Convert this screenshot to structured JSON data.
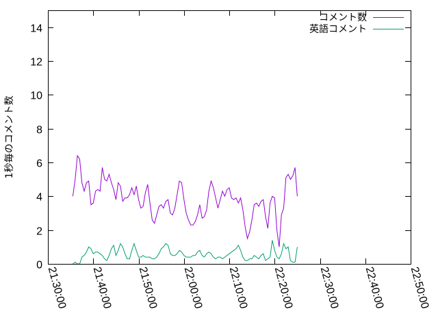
{
  "chart_data": {
    "type": "line",
    "title": "",
    "xlabel": "",
    "ylabel": "1秒毎のコメント数",
    "x_ticks": [
      "21:30:00",
      "21:40:00",
      "21:50:00",
      "22:00:00",
      "22:10:00",
      "22:20:00",
      "22:30:00",
      "22:40:00",
      "22:50:00"
    ],
    "xlim": [
      "21:30:00",
      "22:50:00"
    ],
    "y_ticks": [
      "0",
      "2",
      "4",
      "6",
      "8",
      "10",
      "12",
      "14"
    ],
    "ylim": [
      0,
      15
    ],
    "grid": false,
    "legend_position": "top-right",
    "series": [
      {
        "name": "コメント数",
        "color": "#9400d3",
        "points": [
          [
            "21:35:30",
            4.0
          ],
          [
            "21:36:00",
            5.0
          ],
          [
            "21:36:30",
            6.4
          ],
          [
            "21:37:00",
            6.2
          ],
          [
            "21:37:30",
            4.8
          ],
          [
            "21:38:00",
            4.3
          ],
          [
            "21:38:30",
            4.8
          ],
          [
            "21:39:00",
            4.9
          ],
          [
            "21:39:30",
            3.5
          ],
          [
            "21:40:00",
            3.6
          ],
          [
            "21:40:30",
            4.3
          ],
          [
            "21:41:00",
            4.4
          ],
          [
            "21:41:30",
            4.3
          ],
          [
            "21:42:00",
            5.7
          ],
          [
            "21:42:30",
            5.0
          ],
          [
            "21:43:00",
            4.9
          ],
          [
            "21:43:30",
            5.3
          ],
          [
            "21:44:00",
            4.8
          ],
          [
            "21:44:30",
            4.4
          ],
          [
            "21:45:00",
            3.8
          ],
          [
            "21:45:30",
            4.8
          ],
          [
            "21:46:00",
            4.6
          ],
          [
            "21:46:30",
            3.7
          ],
          [
            "21:47:00",
            3.9
          ],
          [
            "21:47:30",
            3.9
          ],
          [
            "21:48:00",
            4.1
          ],
          [
            "21:48:30",
            4.5
          ],
          [
            "21:49:00",
            4.1
          ],
          [
            "21:49:30",
            4.6
          ],
          [
            "21:50:00",
            3.8
          ],
          [
            "21:50:30",
            3.3
          ],
          [
            "21:51:00",
            3.4
          ],
          [
            "21:51:30",
            4.2
          ],
          [
            "21:52:00",
            4.7
          ],
          [
            "21:52:30",
            3.6
          ],
          [
            "21:53:00",
            2.6
          ],
          [
            "21:53:30",
            2.4
          ],
          [
            "21:54:00",
            2.9
          ],
          [
            "21:54:30",
            3.4
          ],
          [
            "21:55:00",
            3.5
          ],
          [
            "21:55:30",
            3.3
          ],
          [
            "21:56:00",
            3.7
          ],
          [
            "21:56:30",
            3.8
          ],
          [
            "21:57:00",
            3.0
          ],
          [
            "21:57:30",
            2.9
          ],
          [
            "21:58:00",
            3.3
          ],
          [
            "21:58:30",
            4.1
          ],
          [
            "21:59:00",
            4.9
          ],
          [
            "21:59:30",
            4.8
          ],
          [
            "22:00:00",
            3.8
          ],
          [
            "22:00:30",
            3.0
          ],
          [
            "22:01:00",
            2.6
          ],
          [
            "22:01:30",
            2.3
          ],
          [
            "22:02:00",
            2.3
          ],
          [
            "22:02:30",
            2.5
          ],
          [
            "22:03:00",
            2.9
          ],
          [
            "22:03:30",
            3.5
          ],
          [
            "22:04:00",
            2.7
          ],
          [
            "22:04:30",
            2.8
          ],
          [
            "22:05:00",
            3.2
          ],
          [
            "22:05:30",
            4.3
          ],
          [
            "22:06:00",
            4.9
          ],
          [
            "22:06:30",
            4.5
          ],
          [
            "22:07:00",
            3.9
          ],
          [
            "22:07:30",
            3.3
          ],
          [
            "22:08:00",
            3.8
          ],
          [
            "22:08:30",
            4.3
          ],
          [
            "22:09:00",
            4.0
          ],
          [
            "22:09:30",
            4.4
          ],
          [
            "22:10:00",
            4.5
          ],
          [
            "22:10:30",
            3.9
          ],
          [
            "22:11:00",
            3.8
          ],
          [
            "22:11:30",
            3.9
          ],
          [
            "22:12:00",
            3.6
          ],
          [
            "22:12:30",
            3.9
          ],
          [
            "22:13:00",
            3.2
          ],
          [
            "22:13:30",
            2.2
          ],
          [
            "22:14:00",
            1.5
          ],
          [
            "22:14:30",
            1.9
          ],
          [
            "22:15:00",
            2.6
          ],
          [
            "22:15:30",
            3.5
          ],
          [
            "22:16:00",
            3.6
          ],
          [
            "22:16:30",
            3.4
          ],
          [
            "22:17:00",
            3.7
          ],
          [
            "22:17:30",
            3.8
          ],
          [
            "22:18:00",
            2.8
          ],
          [
            "22:18:30",
            2.1
          ],
          [
            "22:19:00",
            3.6
          ],
          [
            "22:19:30",
            4.0
          ],
          [
            "22:20:00",
            3.9
          ],
          [
            "22:20:30",
            2.0
          ],
          [
            "22:21:00",
            1.0
          ],
          [
            "22:21:30",
            2.9
          ],
          [
            "22:22:00",
            3.3
          ],
          [
            "22:22:30",
            5.1
          ],
          [
            "22:23:00",
            5.3
          ],
          [
            "22:23:30",
            5.0
          ],
          [
            "22:24:00",
            5.2
          ],
          [
            "22:24:30",
            5.7
          ],
          [
            "22:25:00",
            4.0
          ]
        ]
      },
      {
        "name": "英語コメント",
        "color": "#009e73",
        "points": [
          [
            "21:35:30",
            0.0
          ],
          [
            "21:36:00",
            0.1
          ],
          [
            "21:36:30",
            0.0
          ],
          [
            "21:37:00",
            0.0
          ],
          [
            "21:37:30",
            0.4
          ],
          [
            "21:38:00",
            0.5
          ],
          [
            "21:38:30",
            0.7
          ],
          [
            "21:39:00",
            1.0
          ],
          [
            "21:39:30",
            0.9
          ],
          [
            "21:40:00",
            0.6
          ],
          [
            "21:40:30",
            0.7
          ],
          [
            "21:41:00",
            0.7
          ],
          [
            "21:41:30",
            0.6
          ],
          [
            "21:42:00",
            0.5
          ],
          [
            "21:42:30",
            0.3
          ],
          [
            "21:43:00",
            0.2
          ],
          [
            "21:43:30",
            0.5
          ],
          [
            "21:44:00",
            0.9
          ],
          [
            "21:44:30",
            1.1
          ],
          [
            "21:45:00",
            0.5
          ],
          [
            "21:45:30",
            0.8
          ],
          [
            "21:46:00",
            1.2
          ],
          [
            "21:46:30",
            1.0
          ],
          [
            "21:47:00",
            0.6
          ],
          [
            "21:47:30",
            0.3
          ],
          [
            "21:48:00",
            0.3
          ],
          [
            "21:48:30",
            0.8
          ],
          [
            "21:49:00",
            1.2
          ],
          [
            "21:49:30",
            0.8
          ],
          [
            "21:50:00",
            0.4
          ],
          [
            "21:50:30",
            0.4
          ],
          [
            "21:51:00",
            0.5
          ],
          [
            "21:51:30",
            0.4
          ],
          [
            "21:52:00",
            0.4
          ],
          [
            "21:52:30",
            0.4
          ],
          [
            "21:53:00",
            0.3
          ],
          [
            "21:53:30",
            0.3
          ],
          [
            "21:54:00",
            0.4
          ],
          [
            "21:54:30",
            0.6
          ],
          [
            "21:55:00",
            0.9
          ],
          [
            "21:55:30",
            1.0
          ],
          [
            "21:56:00",
            1.2
          ],
          [
            "21:56:30",
            1.1
          ],
          [
            "21:57:00",
            0.6
          ],
          [
            "21:57:30",
            0.5
          ],
          [
            "21:58:00",
            0.5
          ],
          [
            "21:58:30",
            0.6
          ],
          [
            "21:59:00",
            0.8
          ],
          [
            "21:59:30",
            0.7
          ],
          [
            "22:00:00",
            0.5
          ],
          [
            "22:00:30",
            0.4
          ],
          [
            "22:01:00",
            0.4
          ],
          [
            "22:01:30",
            0.4
          ],
          [
            "22:02:00",
            0.5
          ],
          [
            "22:02:30",
            0.5
          ],
          [
            "22:03:00",
            0.7
          ],
          [
            "22:03:30",
            0.8
          ],
          [
            "22:04:00",
            0.5
          ],
          [
            "22:04:30",
            0.4
          ],
          [
            "22:05:00",
            0.6
          ],
          [
            "22:05:30",
            0.7
          ],
          [
            "22:06:00",
            0.6
          ],
          [
            "22:06:30",
            0.4
          ],
          [
            "22:07:00",
            0.3
          ],
          [
            "22:07:30",
            0.4
          ],
          [
            "22:08:00",
            0.4
          ],
          [
            "22:08:30",
            0.3
          ],
          [
            "22:09:00",
            0.4
          ],
          [
            "22:09:30",
            0.5
          ],
          [
            "22:10:00",
            0.6
          ],
          [
            "22:10:30",
            0.7
          ],
          [
            "22:11:00",
            0.8
          ],
          [
            "22:11:30",
            0.9
          ],
          [
            "22:12:00",
            1.1
          ],
          [
            "22:12:30",
            0.8
          ],
          [
            "22:13:00",
            0.4
          ],
          [
            "22:13:30",
            0.2
          ],
          [
            "22:14:00",
            0.2
          ],
          [
            "22:14:30",
            0.3
          ],
          [
            "22:15:00",
            0.3
          ],
          [
            "22:15:30",
            0.5
          ],
          [
            "22:16:00",
            0.4
          ],
          [
            "22:16:30",
            0.3
          ],
          [
            "22:17:00",
            0.5
          ],
          [
            "22:17:30",
            0.6
          ],
          [
            "22:18:00",
            0.2
          ],
          [
            "22:18:30",
            0.3
          ],
          [
            "22:19:00",
            0.4
          ],
          [
            "22:19:30",
            1.4
          ],
          [
            "22:20:00",
            0.8
          ],
          [
            "22:20:30",
            0.4
          ],
          [
            "22:21:00",
            0.3
          ],
          [
            "22:21:30",
            0.6
          ],
          [
            "22:22:00",
            1.2
          ],
          [
            "22:22:30",
            0.9
          ],
          [
            "22:23:00",
            1.0
          ],
          [
            "22:23:30",
            0.2
          ],
          [
            "22:24:00",
            0.1
          ],
          [
            "22:24:30",
            0.1
          ],
          [
            "22:25:00",
            1.0
          ]
        ]
      }
    ]
  }
}
